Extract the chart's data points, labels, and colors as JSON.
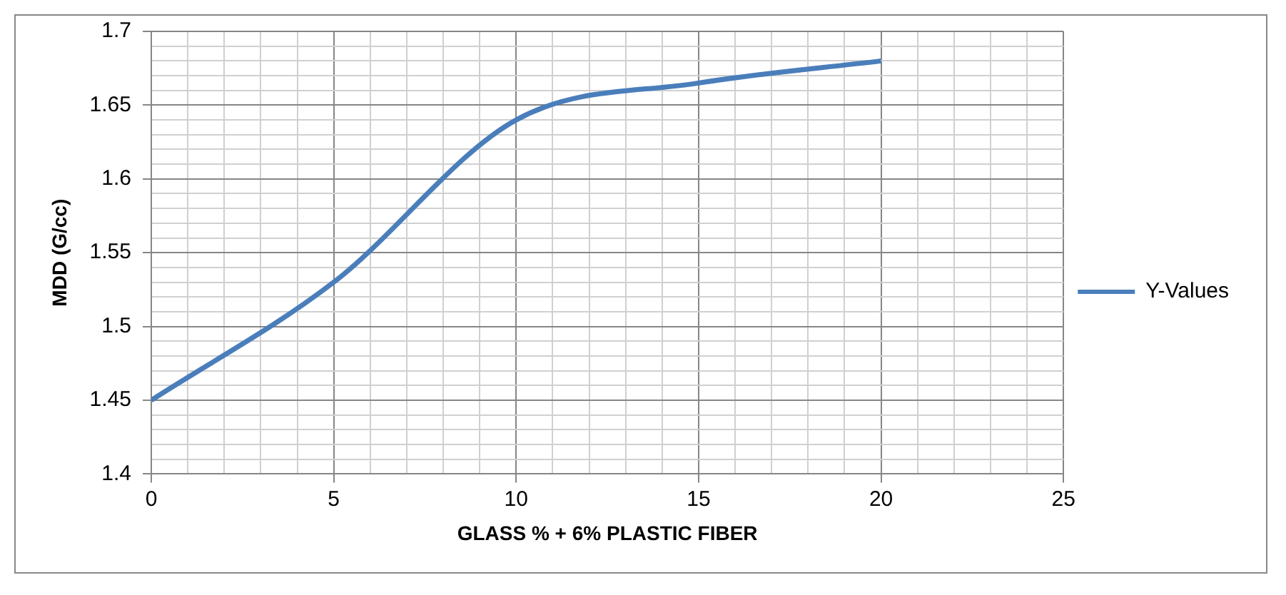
{
  "chart_data": {
    "type": "line",
    "xlabel": "GLASS % + 6% PLASTIC FIBER",
    "ylabel": "MDD (G/cc)",
    "x": [
      0,
      5,
      10,
      15,
      20
    ],
    "series": [
      {
        "name": "Y-Values",
        "color": "#4a7ebb",
        "values": [
          1.45,
          1.53,
          1.64,
          1.665,
          1.68
        ]
      }
    ],
    "xlim": [
      0,
      25
    ],
    "xticks": [
      0,
      {
        "value": 1,
        "label": null
      },
      {
        "value": 2,
        "label": null
      },
      {
        "value": 3,
        "label": null
      },
      {
        "value": 4,
        "label": null
      },
      5,
      {
        "value": 6,
        "label": null
      },
      {
        "value": 7,
        "label": null
      },
      {
        "value": 8,
        "label": null
      },
      {
        "value": 9,
        "label": null
      },
      10,
      {
        "value": 11,
        "label": null
      },
      {
        "value": 12,
        "label": null
      },
      {
        "value": 13,
        "label": null
      },
      {
        "value": 14,
        "label": null
      },
      15,
      {
        "value": 16,
        "label": null
      },
      {
        "value": 17,
        "label": null
      },
      {
        "value": 18,
        "label": null
      },
      {
        "value": 19,
        "label": null
      },
      20,
      {
        "value": 21,
        "label": null
      },
      {
        "value": 22,
        "label": null
      },
      {
        "value": 23,
        "label": null
      },
      {
        "value": 24,
        "label": null
      },
      25
    ],
    "ylim": [
      1.4,
      1.7
    ],
    "yticks": [
      1.4,
      {
        "value": 1.41,
        "label": null
      },
      {
        "value": 1.42,
        "label": null
      },
      {
        "value": 1.43,
        "label": null
      },
      {
        "value": 1.44,
        "label": null
      },
      1.45,
      {
        "value": 1.46,
        "label": null
      },
      {
        "value": 1.47,
        "label": null
      },
      {
        "value": 1.48,
        "label": null
      },
      {
        "value": 1.49,
        "label": null
      },
      1.5,
      {
        "value": 1.51,
        "label": null
      },
      {
        "value": 1.52,
        "label": null
      },
      {
        "value": 1.53,
        "label": null
      },
      {
        "value": 1.54,
        "label": null
      },
      1.55,
      {
        "value": 1.56,
        "label": null
      },
      {
        "value": 1.57,
        "label": null
      },
      {
        "value": 1.58,
        "label": null
      },
      {
        "value": 1.59,
        "label": null
      },
      1.6,
      {
        "value": 1.61,
        "label": null
      },
      {
        "value": 1.62,
        "label": null
      },
      {
        "value": 1.63,
        "label": null
      },
      {
        "value": 1.64,
        "label": null
      },
      1.65,
      {
        "value": 1.66,
        "label": null
      },
      {
        "value": 1.67,
        "label": null
      },
      {
        "value": 1.68,
        "label": null
      },
      {
        "value": 1.69,
        "label": null
      },
      1.7
    ],
    "grid": true,
    "legend": "right",
    "marker": "none",
    "line_style": "solid"
  }
}
